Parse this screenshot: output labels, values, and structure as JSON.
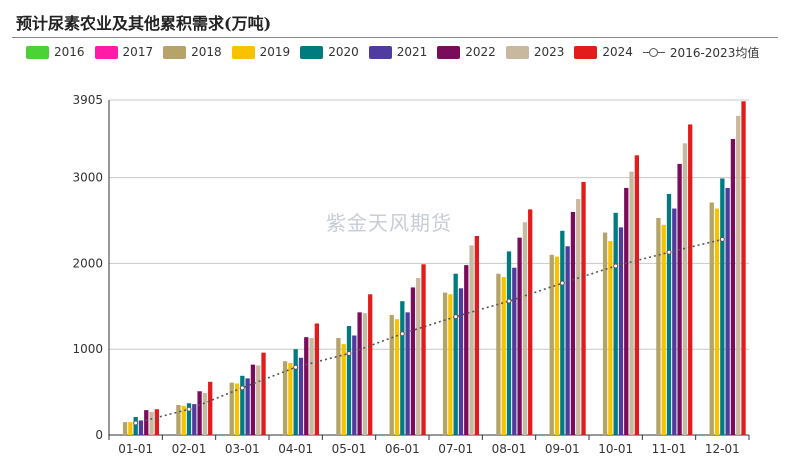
{
  "title": "预计尿素农业及其他累积需求(万吨)",
  "watermark": "紫金天风期货",
  "chart_data": {
    "type": "bar",
    "categories": [
      "01-01",
      "02-01",
      "03-01",
      "04-01",
      "05-01",
      "06-01",
      "07-01",
      "08-01",
      "09-01",
      "10-01",
      "11-01",
      "12-01"
    ],
    "ylim": [
      0,
      3905
    ],
    "yticks": [
      0,
      1000,
      2000,
      3000,
      3905
    ],
    "grid": true,
    "legend_position": "top",
    "series": [
      {
        "name": "2016",
        "color": "#4cd137",
        "values": [
          null,
          null,
          null,
          null,
          null,
          null,
          null,
          null,
          null,
          null,
          null,
          null
        ]
      },
      {
        "name": "2017",
        "color": "#ff1aa8",
        "values": [
          null,
          null,
          null,
          null,
          null,
          null,
          null,
          null,
          null,
          null,
          null,
          null
        ]
      },
      {
        "name": "2018",
        "color": "#b5a36a",
        "values": [
          150,
          350,
          610,
          860,
          1130,
          1400,
          1660,
          1880,
          2100,
          2360,
          2530,
          2710
        ]
      },
      {
        "name": "2019",
        "color": "#f7c300",
        "values": [
          150,
          340,
          600,
          840,
          1060,
          1350,
          1640,
          1840,
          2080,
          2260,
          2450,
          2640
        ]
      },
      {
        "name": "2020",
        "color": "#007b7f",
        "values": [
          210,
          370,
          690,
          1000,
          1270,
          1560,
          1880,
          2140,
          2380,
          2590,
          2810,
          2990
        ]
      },
      {
        "name": "2021",
        "color": "#4f3c9e",
        "values": [
          170,
          360,
          660,
          900,
          1160,
          1430,
          1710,
          1950,
          2200,
          2420,
          2640,
          2880
        ]
      },
      {
        "name": "2022",
        "color": "#7a0c5c",
        "values": [
          290,
          510,
          820,
          1140,
          1430,
          1720,
          1980,
          2300,
          2600,
          2880,
          3160,
          3450
        ]
      },
      {
        "name": "2023",
        "color": "#c8b89f",
        "values": [
          270,
          490,
          810,
          1130,
          1420,
          1830,
          2210,
          2480,
          2750,
          3070,
          3400,
          3720
        ]
      },
      {
        "name": "2024",
        "color": "#e21b1b",
        "values": [
          300,
          620,
          960,
          1300,
          1640,
          1990,
          2320,
          2630,
          2950,
          3260,
          3620,
          3890
        ]
      },
      {
        "name": "2016-2023均值",
        "color": "#555555",
        "type": "line",
        "values": [
          140,
          300,
          550,
          790,
          950,
          1180,
          1380,
          1560,
          1770,
          1970,
          2130,
          2280
        ]
      }
    ]
  }
}
